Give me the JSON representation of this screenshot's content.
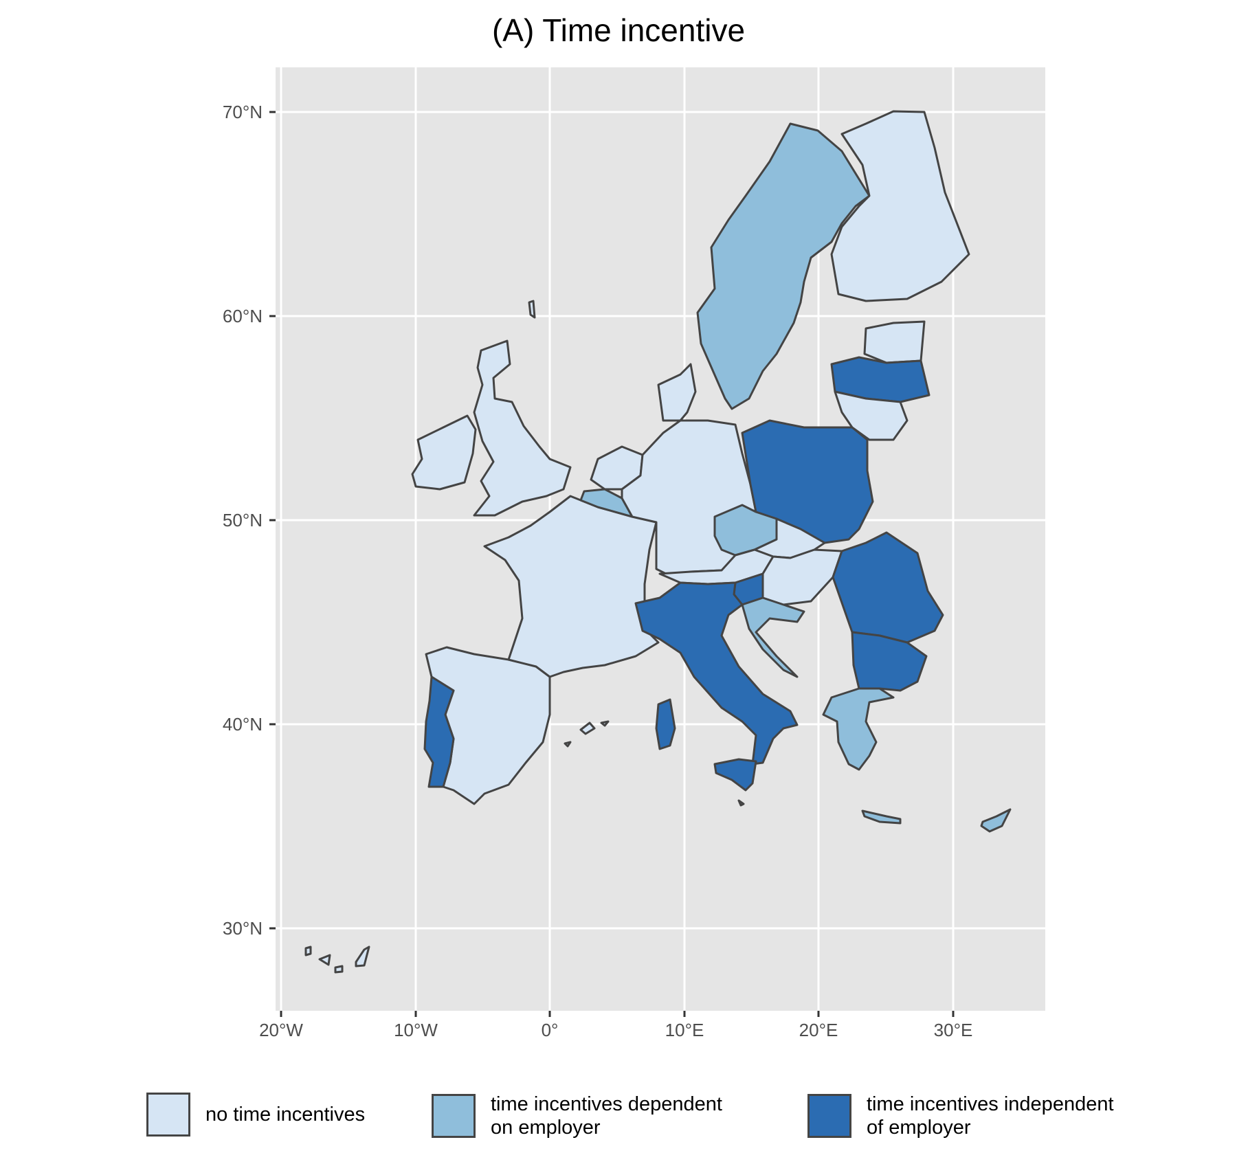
{
  "title": "(A) Time incentive",
  "colors": {
    "panel": "#e5e5e5",
    "grid": "#ffffff",
    "border": "#444444",
    "no_time_incentives": "#d6e5f4",
    "dependent_on_employer": "#8fbedb",
    "independent_of_employer": "#2b6cb2"
  },
  "map_data": {
    "type": "choropleth",
    "x_ticks": [
      "20°W",
      "10°W",
      "0°",
      "10°E",
      "20°E",
      "30°E"
    ],
    "y_ticks": [
      "70°N",
      "60°N",
      "50°N",
      "40°N",
      "30°N"
    ],
    "xlim": [
      -20.5,
      37.0
    ],
    "ylim": [
      25.8,
      72.2
    ],
    "categories": [
      {
        "key": "no_time_incentives",
        "label": "no time incentives"
      },
      {
        "key": "dependent_on_employer",
        "label": "time incentives dependent\non employer"
      },
      {
        "key": "independent_of_employer",
        "label": "time incentives independent\nof employer"
      }
    ],
    "regions": [
      {
        "name": "Ireland",
        "category": "no_time_incentives"
      },
      {
        "name": "United Kingdom",
        "category": "no_time_incentives"
      },
      {
        "name": "Spain",
        "category": "no_time_incentives"
      },
      {
        "name": "France",
        "category": "no_time_incentives"
      },
      {
        "name": "Germany",
        "category": "no_time_incentives"
      },
      {
        "name": "Netherlands",
        "category": "no_time_incentives"
      },
      {
        "name": "Denmark",
        "category": "no_time_incentives"
      },
      {
        "name": "Austria",
        "category": "no_time_incentives"
      },
      {
        "name": "Hungary",
        "category": "no_time_incentives"
      },
      {
        "name": "Slovakia",
        "category": "no_time_incentives"
      },
      {
        "name": "Finland",
        "category": "no_time_incentives"
      },
      {
        "name": "Estonia",
        "category": "no_time_incentives"
      },
      {
        "name": "Lithuania",
        "category": "no_time_incentives"
      },
      {
        "name": "Malta",
        "category": "no_time_incentives"
      },
      {
        "name": "Canary Islands",
        "category": "no_time_incentives"
      },
      {
        "name": "Sweden",
        "category": "dependent_on_employer"
      },
      {
        "name": "Belgium",
        "category": "dependent_on_employer"
      },
      {
        "name": "Czechia",
        "category": "dependent_on_employer"
      },
      {
        "name": "Greece",
        "category": "dependent_on_employer"
      },
      {
        "name": "Cyprus",
        "category": "dependent_on_employer"
      },
      {
        "name": "Croatia",
        "category": "dependent_on_employer"
      },
      {
        "name": "Portugal",
        "category": "independent_of_employer"
      },
      {
        "name": "Italy",
        "category": "independent_of_employer"
      },
      {
        "name": "Sardinia",
        "category": "independent_of_employer"
      },
      {
        "name": "Sicily",
        "category": "independent_of_employer"
      },
      {
        "name": "Poland",
        "category": "independent_of_employer"
      },
      {
        "name": "Romania",
        "category": "independent_of_employer"
      },
      {
        "name": "Bulgaria",
        "category": "independent_of_employer"
      },
      {
        "name": "Latvia",
        "category": "independent_of_employer"
      },
      {
        "name": "Slovenia",
        "category": "independent_of_employer"
      }
    ]
  }
}
